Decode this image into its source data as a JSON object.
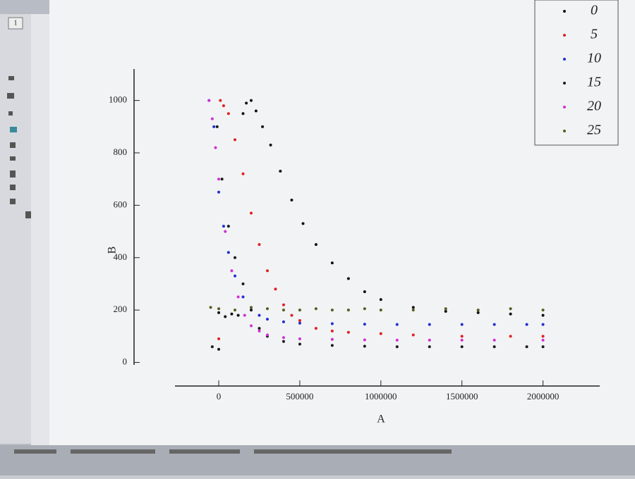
{
  "chart_data": {
    "type": "scatter",
    "x_label": "A",
    "y_label": "B",
    "xlim": [
      -270000,
      2350000
    ],
    "ylim": [
      -90,
      1120
    ],
    "xticks": [
      0,
      500000,
      1000000,
      1500000,
      2000000
    ],
    "yticks": [
      0,
      200,
      400,
      600,
      800,
      1000
    ],
    "legend": "top-right",
    "series": [
      {
        "name": "0",
        "color": "#111111",
        "x": [
          0,
          40000,
          80000,
          120000,
          150000,
          170000,
          200000,
          230000,
          270000,
          320000,
          380000,
          450000,
          520000,
          600000,
          700000,
          800000,
          900000,
          1000000,
          1200000,
          1400000,
          1600000,
          1800000,
          2000000
        ],
        "values": [
          190,
          175,
          185,
          180,
          950,
          990,
          1000,
          960,
          900,
          830,
          730,
          620,
          530,
          450,
          380,
          320,
          270,
          240,
          210,
          195,
          190,
          185,
          180
        ]
      },
      {
        "name": "5",
        "color": "#e02020",
        "x": [
          0,
          10000,
          30000,
          60000,
          100000,
          150000,
          200000,
          250000,
          300000,
          350000,
          400000,
          450000,
          500000,
          600000,
          700000,
          800000,
          1000000,
          1200000,
          1500000,
          1800000,
          2000000
        ],
        "values": [
          90,
          1000,
          980,
          950,
          850,
          720,
          570,
          450,
          350,
          280,
          220,
          180,
          160,
          130,
          120,
          115,
          110,
          105,
          100,
          100,
          100
        ]
      },
      {
        "name": "10",
        "color": "#2030d0",
        "x": [
          -60000,
          -30000,
          0,
          30000,
          60000,
          100000,
          150000,
          200000,
          250000,
          300000,
          400000,
          500000,
          700000,
          900000,
          1100000,
          1300000,
          1500000,
          1700000,
          1900000,
          2000000
        ],
        "values": [
          1000,
          900,
          650,
          520,
          420,
          330,
          250,
          200,
          180,
          165,
          155,
          150,
          148,
          146,
          145,
          145,
          145,
          145,
          145,
          145
        ]
      },
      {
        "name": "15",
        "color": "#1a1a1a",
        "x": [
          -40000,
          -10000,
          0,
          20000,
          60000,
          100000,
          150000,
          200000,
          250000,
          300000,
          400000,
          500000,
          700000,
          900000,
          1100000,
          1300000,
          1500000,
          1700000,
          1900000,
          2000000
        ],
        "values": [
          60,
          900,
          50,
          700,
          520,
          400,
          300,
          200,
          130,
          100,
          80,
          70,
          65,
          62,
          60,
          60,
          60,
          60,
          60,
          60
        ]
      },
      {
        "name": "20",
        "color": "#d030d0",
        "x": [
          -60000,
          -40000,
          -20000,
          0,
          40000,
          80000,
          120000,
          160000,
          200000,
          250000,
          300000,
          400000,
          500000,
          700000,
          900000,
          1100000,
          1300000,
          1500000,
          1700000,
          2000000
        ],
        "values": [
          1000,
          930,
          820,
          700,
          500,
          350,
          250,
          180,
          140,
          120,
          105,
          95,
          90,
          88,
          86,
          85,
          85,
          85,
          85,
          85
        ]
      },
      {
        "name": "25",
        "color": "#5a5a20",
        "x": [
          -50000,
          0,
          100000,
          200000,
          300000,
          400000,
          500000,
          600000,
          700000,
          800000,
          900000,
          1000000,
          1200000,
          1400000,
          1600000,
          1800000,
          2000000
        ],
        "values": [
          210,
          205,
          200,
          210,
          205,
          200,
          200,
          205,
          200,
          200,
          205,
          200,
          200,
          205,
          200,
          205,
          200
        ]
      }
    ]
  }
}
